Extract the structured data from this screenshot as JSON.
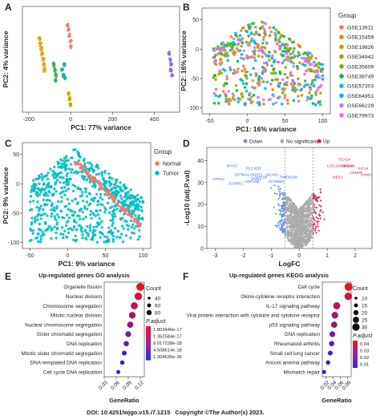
{
  "panels": {
    "A": "A",
    "B": "B",
    "C": "C",
    "D": "D",
    "E": "E",
    "F": "F"
  },
  "chart_data": [
    {
      "panel": "A",
      "type": "scatter",
      "xlabel": "PC1: 77% variance",
      "ylabel": "PC2: 4% variance",
      "xticks": [
        -200,
        0,
        200,
        400
      ],
      "xlim": [
        -230,
        520
      ],
      "ylim": [
        -200,
        200
      ],
      "series": [
        {
          "color": "#e8a317",
          "points": [
            [
              -150,
              80
            ],
            [
              -145,
              60
            ],
            [
              -140,
              40
            ],
            [
              -135,
              20
            ],
            [
              -130,
              0
            ],
            [
              -128,
              -20
            ],
            [
              -125,
              -40
            ]
          ]
        },
        {
          "color": "#4caf50",
          "points": [
            [
              -80,
              -20
            ],
            [
              -75,
              -40
            ],
            [
              -70,
              -60
            ],
            [
              -72,
              -80
            ]
          ]
        },
        {
          "color": "#20b2aa",
          "points": [
            [
              -40,
              -40
            ],
            [
              -35,
              -60
            ],
            [
              -30,
              -20
            ],
            [
              -28,
              -70
            ]
          ]
        },
        {
          "color": "#f08080",
          "points": [
            [
              -15,
              130
            ],
            [
              -10,
              110
            ],
            [
              -5,
              90
            ],
            [
              0,
              70
            ],
            [
              2,
              50
            ]
          ]
        },
        {
          "color": "#c8a800",
          "points": [
            [
              -10,
              -130
            ],
            [
              -5,
              -150
            ],
            [
              0,
              -170
            ]
          ]
        },
        {
          "color": "#9370db",
          "points": [
            [
              470,
              20
            ],
            [
              475,
              0
            ],
            [
              480,
              -20
            ],
            [
              478,
              -40
            ],
            [
              485,
              -60
            ]
          ]
        }
      ]
    },
    {
      "panel": "B",
      "type": "scatter",
      "xlabel": "PC1: 16% variance",
      "ylabel": "PC2: 16% variance",
      "xticks": [
        -50,
        0,
        50,
        100
      ],
      "yticks": [
        50,
        0,
        -50,
        -100
      ],
      "xlim": [
        -60,
        110
      ],
      "ylim": [
        -110,
        70
      ],
      "legend_title": "Group",
      "legend": [
        {
          "name": "GSE13911",
          "color": "#f8766d"
        },
        {
          "name": "GSE15459",
          "color": "#e58700"
        },
        {
          "name": "GSE19826",
          "color": "#c99800"
        },
        {
          "name": "GSE34942",
          "color": "#a3a500"
        },
        {
          "name": "GSE35809",
          "color": "#6bb100"
        },
        {
          "name": "GSE38749",
          "color": "#00ba38"
        },
        {
          "name": "GSE57303",
          "color": "#00bfc4"
        },
        {
          "name": "GSE64951",
          "color": "#00b0f6"
        },
        {
          "name": "GSE66229",
          "color": "#b983ff"
        },
        {
          "name": "GSE79973",
          "color": "#e76bf3"
        }
      ]
    },
    {
      "panel": "C",
      "type": "scatter",
      "xlabel": "PC1: 9% variance",
      "ylabel": "PC2: 9% variance",
      "xticks": [
        -50,
        0,
        50,
        100
      ],
      "yticks": [
        50,
        0,
        -50,
        -100
      ],
      "xlim": [
        -60,
        110
      ],
      "ylim": [
        -110,
        70
      ],
      "legend_title": "Group",
      "legend": [
        {
          "name": "Normal",
          "color": "#f8766d"
        },
        {
          "name": "Tumor",
          "color": "#00bfc4"
        }
      ]
    },
    {
      "panel": "D",
      "type": "scatter",
      "xlabel": "LogFC",
      "ylabel": "-Log10 (adj.P.val)",
      "xticks": [
        -3,
        -2,
        -1,
        0,
        1,
        2
      ],
      "yticks": [
        0,
        10,
        20,
        30,
        40
      ],
      "xlim": [
        -3.3,
        2.6
      ],
      "ylim": [
        0,
        46
      ],
      "legend": [
        {
          "name": "Down",
          "color": "#6a8fd8"
        },
        {
          "name": "No significance",
          "color": "#aaaaaa"
        },
        {
          "name": "Up",
          "color": "#d62246"
        }
      ],
      "labels_down": [
        {
          "text": "MYOC",
          "x": -2.6,
          "y": 37
        },
        {
          "text": "PLCXD3",
          "x": -1.9,
          "y": 36
        },
        {
          "text": "ADH1B",
          "x": -1.6,
          "y": 32
        },
        {
          "text": "DPT",
          "x": -2.3,
          "y": 33
        },
        {
          "text": "MAL",
          "x": -2.05,
          "y": 33
        },
        {
          "text": "GRP155",
          "x": -1.95,
          "y": 30
        },
        {
          "text": "QSYT1",
          "x": -1.75,
          "y": 33
        },
        {
          "text": "PVE1",
          "x": -1.7,
          "y": 31
        },
        {
          "text": "ESRRG",
          "x": -2.5,
          "y": 29
        },
        {
          "text": "ATP4A",
          "x": -3.1,
          "y": 31
        },
        {
          "text": "HCAR1",
          "x": -1.2,
          "y": 33
        },
        {
          "text": "KCNMB2",
          "x": -1.1,
          "y": 30
        },
        {
          "text": "TMEM100",
          "x": -0.7,
          "y": 32
        }
      ],
      "labels_up": [
        {
          "text": "TEAD4",
          "x": 1.4,
          "y": 40
        },
        {
          "text": "LOC100996648",
          "x": 1.0,
          "y": 37
        },
        {
          "text": "CDCA5",
          "x": 1.5,
          "y": 37
        },
        {
          "text": "KIF14",
          "x": 2.1,
          "y": 36
        },
        {
          "text": "CENPF",
          "x": 1.8,
          "y": 34
        },
        {
          "text": "NEK2",
          "x": 1.2,
          "y": 32
        },
        {
          "text": "INHBA",
          "x": 2.2,
          "y": 33
        }
      ]
    },
    {
      "panel": "E",
      "type": "scatter",
      "title": "Up-regulated genes GO analysis",
      "xlabel": "GeneRatio",
      "xticks": [
        "0.03",
        "0.06",
        "0.09",
        "0.12"
      ],
      "xlim": [
        0.03,
        0.13
      ],
      "categories": [
        "Organelle fission",
        "Nuclear division",
        "Chromosome segregation",
        "Mitotic nuclear division",
        "Nuclear chromosome segregation",
        "Sister chromatid segregation",
        "DNA replication",
        "Mitotic sister chromatid segregation",
        "DNA-templated DNA replication",
        "Cell cycle DNA replication"
      ],
      "values": [
        0.12,
        0.115,
        0.105,
        0.1,
        0.095,
        0.09,
        0.085,
        0.08,
        0.075,
        0.065
      ],
      "count_title": "Count",
      "count_legend": [
        "40",
        "60",
        "80"
      ],
      "padj_title": "P.adjust",
      "padj_legend": [
        "1.803446e-17",
        "1.352584e-17",
        "9.017228e-18",
        "4.508614e-18",
        "1.304630e-36"
      ]
    },
    {
      "panel": "F",
      "type": "scatter",
      "title": "Up-regulated genes KEGG analysis",
      "xlabel": "GeneRatio",
      "xticks": [
        "0.02",
        "0.04",
        "0.06",
        "0.08"
      ],
      "xlim": [
        0.01,
        0.09
      ],
      "categories": [
        "Cell cycle",
        "Okine-cytokine receptor interaction",
        "IL-17 signaling pathway",
        "Viral protein interaction with cytokine and cytokine receptor",
        "p53 signaling pathway",
        "DNA replication",
        "Rheumatoid arthritis",
        "Small cell lung cancer",
        "Anconi anemia pathway",
        "Mismatch repair"
      ],
      "values": [
        0.083,
        0.082,
        0.05,
        0.045,
        0.043,
        0.038,
        0.036,
        0.032,
        0.026,
        0.015
      ],
      "count_title": "Count",
      "count_legend": [
        "10",
        "15",
        "20",
        "25",
        "30"
      ],
      "padj_title": "P.adjust",
      "padj_legend": [
        "0.04",
        "0.03",
        "0.02",
        "0.01"
      ]
    }
  ],
  "footer": {
    "doi": "DOI: 10.4251/wjgo.v15.i7.1215",
    "copyright": "Copyright ©The Author(s) 2023."
  }
}
